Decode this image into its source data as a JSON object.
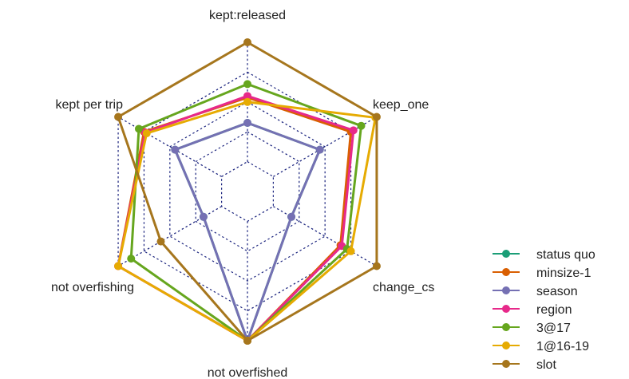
{
  "chart_data": {
    "type": "radar",
    "axes": [
      "kept:released",
      "keep_one",
      "change_cs",
      "not overfished",
      "not overfishing",
      "kept per trip"
    ],
    "rlim": [
      0,
      1
    ],
    "grid_levels": 5,
    "grid": true,
    "legend_position": "bottom-right",
    "series": [
      {
        "name": "status quo",
        "color": "#1b9e77",
        "values": [
          0.46,
          0.56,
          0.34,
          1.0,
          0.34,
          0.56
        ]
      },
      {
        "name": "minsize-1",
        "color": "#d95f02",
        "values": [
          0.63,
          0.8,
          0.72,
          1.0,
          1.0,
          0.8
        ]
      },
      {
        "name": "season",
        "color": "#7570b3",
        "values": [
          0.46,
          0.56,
          0.34,
          1.0,
          0.34,
          0.56
        ]
      },
      {
        "name": "region",
        "color": "#e7298a",
        "values": [
          0.64,
          0.82,
          0.73,
          1.0,
          1.0,
          0.79
        ]
      },
      {
        "name": "3@17",
        "color": "#66a61e",
        "values": [
          0.72,
          0.88,
          0.77,
          1.0,
          0.9,
          0.84
        ]
      },
      {
        "name": "1@16-19",
        "color": "#e6ab02",
        "values": [
          0.6,
          0.99,
          0.8,
          1.0,
          1.0,
          0.78
        ]
      },
      {
        "name": "slot",
        "color": "#a6761d",
        "values": [
          1.0,
          1.0,
          1.0,
          1.0,
          0.67,
          1.0
        ]
      }
    ]
  }
}
